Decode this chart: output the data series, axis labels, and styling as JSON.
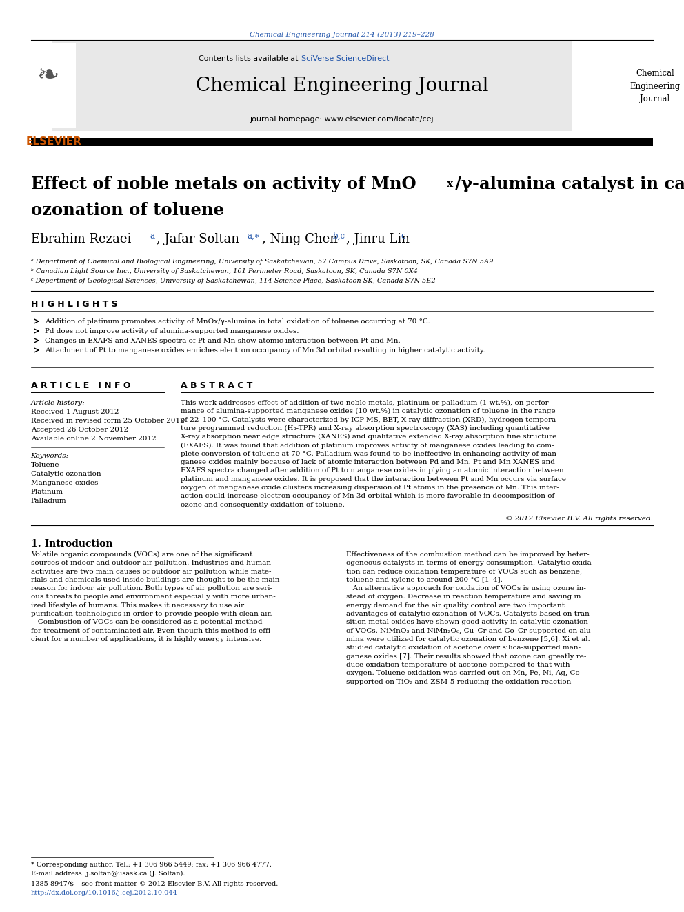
{
  "page_width": 9.92,
  "page_height": 13.23,
  "bg_color": "#ffffff",
  "header_citation": "Chemical Engineering Journal 214 (2013) 219–228",
  "header_citation_color": "#2255aa",
  "journal_name": "Chemical Engineering Journal",
  "contents_text": "Contents lists available at ",
  "sciverse_text": "SciVerse ScienceDirect",
  "sciverse_color": "#2255aa",
  "homepage_text": "journal homepage: www.elsevier.com/locate/cej",
  "sidebar_journal": "Chemical\nEngineering\nJournal",
  "affil_a": "ᵃ Department of Chemical and Biological Engineering, University of Saskatchewan, 57 Campus Drive, Saskatoon, SK, Canada S7N 5A9",
  "affil_b": "ᵇ Canadian Light Source Inc., University of Saskatchewan, 101 Perimeter Road, Saskatoon, SK, Canada S7N 0X4",
  "affil_c": "ᶜ Department of Geological Sciences, University of Saskatchewan, 114 Science Place, Saskatoon SK, Canada S7N 5E2",
  "highlights_title": "H I G H L I G H T S",
  "highlights": [
    "Addition of platinum promotes activity of MnOx/γ-alumina in total oxidation of toluene occurring at 70 °C.",
    "Pd does not improve activity of alumina-supported manganese oxides.",
    "Changes in EXAFS and XANES spectra of Pt and Mn show atomic interaction between Pt and Mn.",
    "Attachment of Pt to manganese oxides enriches electron occupancy of Mn 3d orbital resulting in higher catalytic activity."
  ],
  "article_info_title": "A R T I C L E   I N F O",
  "abstract_title": "A B S T R A C T",
  "article_history_label": "Article history:",
  "received": "Received 1 August 2012",
  "revised": "Received in revised form 25 October 2012",
  "accepted": "Accepted 26 October 2012",
  "available": "Available online 2 November 2012",
  "keywords_label": "Keywords:",
  "keywords": [
    "Toluene",
    "Catalytic ozonation",
    "Manganese oxides",
    "Platinum",
    "Palladium"
  ],
  "copyright": "© 2012 Elsevier B.V. All rights reserved.",
  "intro_title": "1. Introduction",
  "footnote_star": "* Corresponding author. Tel.: +1 306 966 5449; fax: +1 306 966 4777.",
  "footnote_email": "E-mail address: j.soltan@usask.ca (J. Soltan).",
  "footnote_issn": "1385-8947/$ – see front matter © 2012 Elsevier B.V. All rights reserved.",
  "footnote_doi": "http://dx.doi.org/10.1016/j.cej.2012.10.044",
  "doi_color": "#2255aa",
  "orange_color": "#cc5500",
  "gray_header_bg": "#e8e8e8",
  "abstract_lines": [
    "This work addresses effect of addition of two noble metals, platinum or palladium (1 wt.%), on perfor-",
    "mance of alumina-supported manganese oxides (10 wt.%) in catalytic ozonation of toluene in the range",
    "of 22–100 °C. Catalysts were characterized by ICP-MS, BET, X-ray diffraction (XRD), hydrogen tempera-",
    "ture programmed reduction (H₂-TPR) and X-ray absorption spectroscopy (XAS) including quantitative",
    "X-ray absorption near edge structure (XANES) and qualitative extended X-ray absorption fine structure",
    "(EXAFS). It was found that addition of platinum improves activity of manganese oxides leading to com-",
    "plete conversion of toluene at 70 °C. Palladium was found to be ineffective in enhancing activity of man-",
    "ganese oxides mainly because of lack of atomic interaction between Pd and Mn. Pt and Mn XANES and",
    "EXAFS spectra changed after addition of Pt to manganese oxides implying an atomic interaction between",
    "platinum and manganese oxides. It is proposed that the interaction between Pt and Mn occurs via surface",
    "oxygen of manganese oxide clusters increasing dispersion of Pt atoms in the presence of Mn. This inter-",
    "action could increase electron occupancy of Mn 3d orbital which is more favorable in decomposition of",
    "ozone and consequently oxidation of toluene."
  ],
  "intro1_lines": [
    "Volatile organic compounds (VOCs) are one of the significant",
    "sources of indoor and outdoor air pollution. Industries and human",
    "activities are two main causes of outdoor air pollution while mate-",
    "rials and chemicals used inside buildings are thought to be the main",
    "reason for indoor air pollution. Both types of air pollution are seri-",
    "ous threats to people and environment especially with more urban-",
    "ized lifestyle of humans. This makes it necessary to use air",
    "purification technologies in order to provide people with clean air.",
    "   Combustion of VOCs can be considered as a potential method",
    "for treatment of contaminated air. Even though this method is effi-",
    "cient for a number of applications, it is highly energy intensive."
  ],
  "intro2_lines": [
    "Effectiveness of the combustion method can be improved by heter-",
    "ogeneous catalysts in terms of energy consumption. Catalytic oxida-",
    "tion can reduce oxidation temperature of VOCs such as benzene,",
    "toluene and xylene to around 200 °C [1–4].",
    "   An alternative approach for oxidation of VOCs is using ozone in-",
    "stead of oxygen. Decrease in reaction temperature and saving in",
    "energy demand for the air quality control are two important",
    "advantages of catalytic ozonation of VOCs. Catalysts based on tran-",
    "sition metal oxides have shown good activity in catalytic ozonation",
    "of VOCs. NiMnO₃ and NiMn₂O₆, Cu–Cr and Co–Cr supported on alu-",
    "mina were utilized for catalytic ozonation of benzene [5,6]. Xi et al.",
    "studied catalytic oxidation of acetone over silica-supported man-",
    "ganese oxides [7]. Their results showed that ozone can greatly re-",
    "duce oxidation temperature of acetone compared to that with",
    "oxygen. Toluene oxidation was carried out on Mn, Fe, Ni, Ag, Co",
    "supported on TiO₂ and ZSM-5 reducing the oxidation reaction"
  ]
}
